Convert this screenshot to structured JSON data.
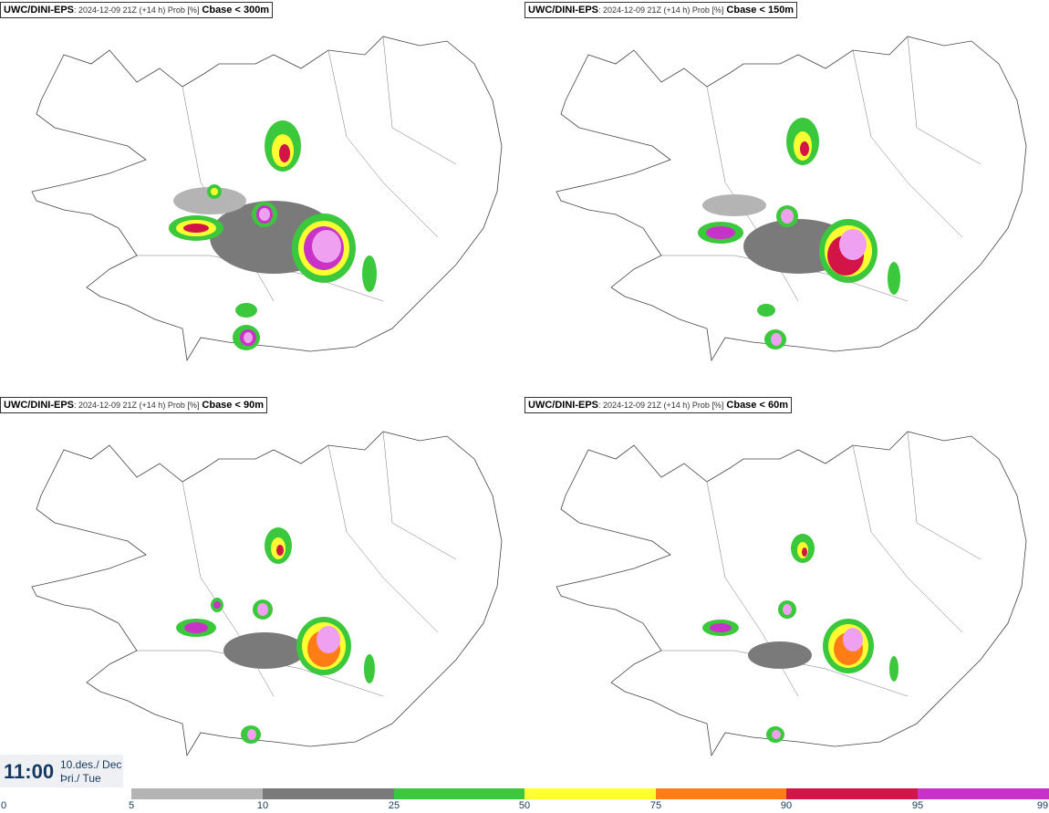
{
  "panels": [
    {
      "model": "UWC/DINI-EPS",
      "meta": ": 2024-12-09 21Z (+14 h) Prob [%]",
      "variable": "Cbase < 300m"
    },
    {
      "model": "UWC/DINI-EPS",
      "meta": ": 2024-12-09 21Z (+14 h) Prob [%]",
      "variable": "Cbase < 150m"
    },
    {
      "model": "UWC/DINI-EPS",
      "meta": ": 2024-12-09 21Z (+14 h) Prob [%]",
      "variable": "Cbase < 90m"
    },
    {
      "model": "UWC/DINI-EPS",
      "meta": ": 2024-12-09 21Z (+14 h) Prob [%]",
      "variable": "Cbase < 60m"
    }
  ],
  "valid_time": {
    "clock": "11:00",
    "date_line": "10.des./ Dec",
    "day_line": "Þri./ Tue"
  },
  "legend": {
    "ticks": [
      "0",
      "5",
      "10",
      "25",
      "50",
      "75",
      "90",
      "95",
      "99"
    ],
    "colors": [
      "#b4b4b4",
      "#7a7a7a",
      "#3cc83c",
      "#ffff32",
      "#ff7d14",
      "#d21446",
      "#c832c8",
      "#f0a0f0"
    ]
  }
}
